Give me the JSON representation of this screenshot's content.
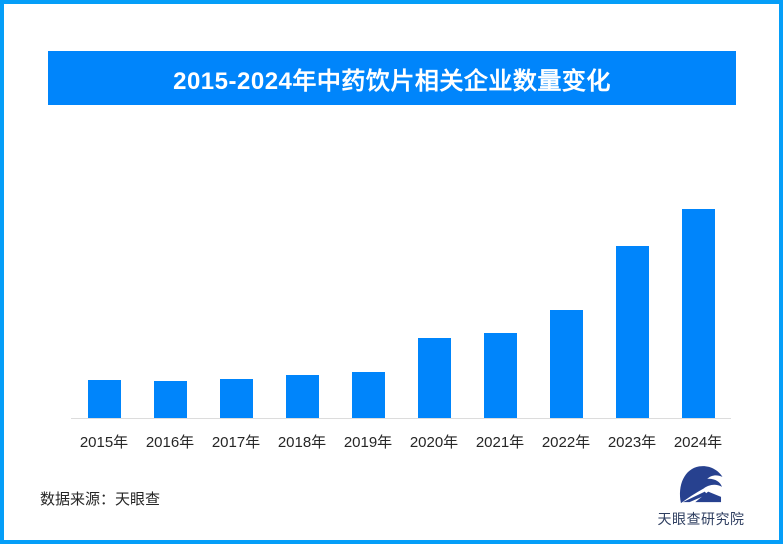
{
  "frame": {
    "border_color": "#059ef8",
    "background": "#ffffff"
  },
  "title_banner": {
    "text": "2015-2024年中药饮片相关企业数量变化",
    "background": "#0085fb",
    "text_color": "#ffffff"
  },
  "chart_data": {
    "type": "bar",
    "title": "2015-2024年中药饮片相关企业数量变化",
    "categories": [
      "2015年",
      "2016年",
      "2017年",
      "2018年",
      "2019年",
      "2020年",
      "2021年",
      "2022年",
      "2023年",
      "2024年"
    ],
    "values": [
      38,
      37,
      39,
      43,
      46,
      80,
      85,
      108,
      172,
      209
    ],
    "value_scale": "relative-height-units (no y-axis labels or data labels shown in image)",
    "ylim": [
      0,
      268
    ],
    "xlabel": "",
    "ylabel": "",
    "grid": false,
    "legend": "none",
    "bar_color": "#0085fb",
    "axis_line_color": "#dcdcdc",
    "tick_label_color": "#262626"
  },
  "footer": {
    "source_text": "数据来源：天眼查",
    "logo": {
      "name": "天眼查研究院",
      "icon": "tianyancha-eye-swoosh",
      "icon_color": "#27418f",
      "text_color": "#2e3e60"
    }
  }
}
